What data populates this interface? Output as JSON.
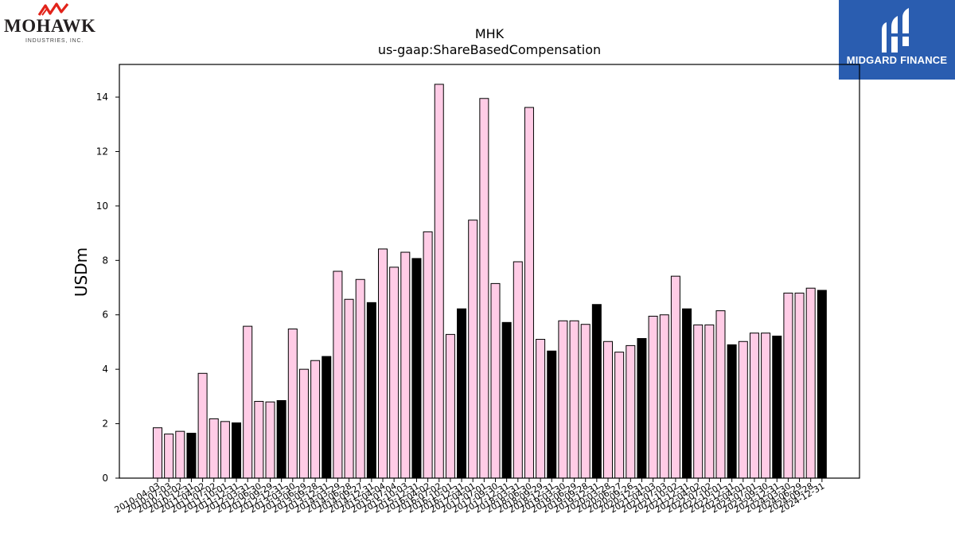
{
  "logos": {
    "left": {
      "name": "MOHAWK",
      "subtitle": "INDUSTRIES, INC.",
      "mark_color": "#e2231a"
    },
    "right": {
      "name": "MIDGARD FINANCE",
      "background": "#2a5db0"
    }
  },
  "chart_data": {
    "type": "bar",
    "title": "MHK",
    "subtitle": "us-gaap:ShareBasedCompensation",
    "xlabel": "",
    "ylabel": "USDm",
    "ylim": [
      0,
      15.2
    ],
    "yticks": [
      0,
      2,
      4,
      6,
      8,
      10,
      12,
      14
    ],
    "grid": false,
    "colors": {
      "quarter": "#ffcce6",
      "annual": "#000000",
      "edge": "#000000"
    },
    "categories": [
      "2010-04-03",
      "2010-07-03",
      "2010-10-02",
      "2010-12-31",
      "2011-04-02",
      "2011-07-02",
      "2011-10-01",
      "2011-12-31",
      "2012-03-31",
      "2012-06-30",
      "2012-09-29",
      "2012-12-31",
      "2013-03-30",
      "2013-06-29",
      "2013-09-28",
      "2013-12-31",
      "2014-03-29",
      "2014-06-28",
      "2014-09-27",
      "2014-12-31",
      "2015-04-04",
      "2015-07-04",
      "2015-10-03",
      "2015-12-31",
      "2016-04-02",
      "2016-07-02",
      "2016-10-01",
      "2016-12-31",
      "2017-04-01",
      "2017-07-01",
      "2017-09-30",
      "2017-12-31",
      "2018-03-31",
      "2018-06-30",
      "2018-09-29",
      "2018-12-31",
      "2019-03-30",
      "2019-06-29",
      "2019-09-28",
      "2019-12-31",
      "2020-03-28",
      "2020-06-27",
      "2020-09-26",
      "2020-12-31",
      "2021-04-03",
      "2021-07-03",
      "2021-10-02",
      "2021-12-31",
      "2022-04-02",
      "2022-07-02",
      "2022-10-01",
      "2022-12-31",
      "2023-04-01",
      "2023-07-01",
      "2023-09-30",
      "2023-12-31",
      "2024-03-30",
      "2024-06-29",
      "2024-09-28",
      "2024-12-31"
    ],
    "values": [
      1.85,
      1.62,
      1.72,
      1.65,
      3.85,
      2.18,
      2.08,
      2.03,
      5.58,
      2.82,
      2.8,
      2.85,
      5.48,
      4.0,
      4.32,
      4.47,
      7.6,
      6.57,
      7.3,
      6.45,
      8.42,
      7.75,
      8.3,
      8.07,
      9.05,
      14.47,
      5.28,
      6.22,
      9.48,
      13.95,
      7.15,
      5.72,
      7.95,
      13.62,
      5.1,
      4.67,
      5.78,
      5.78,
      5.65,
      6.38,
      5.02,
      4.63,
      4.87,
      5.13,
      5.95,
      6.0,
      7.42,
      6.22,
      5.63,
      5.63,
      6.15,
      4.9,
      5.02,
      5.33,
      5.33,
      5.22,
      6.8,
      6.8,
      6.98,
      6.9
    ],
    "annual": [
      false,
      false,
      false,
      true,
      false,
      false,
      false,
      true,
      false,
      false,
      false,
      true,
      false,
      false,
      false,
      true,
      false,
      false,
      false,
      true,
      false,
      false,
      false,
      true,
      false,
      false,
      false,
      true,
      false,
      false,
      false,
      true,
      false,
      false,
      false,
      true,
      false,
      false,
      false,
      true,
      false,
      false,
      false,
      true,
      false,
      false,
      false,
      true,
      false,
      false,
      false,
      true,
      false,
      false,
      false,
      true,
      false,
      false,
      false,
      true
    ]
  }
}
